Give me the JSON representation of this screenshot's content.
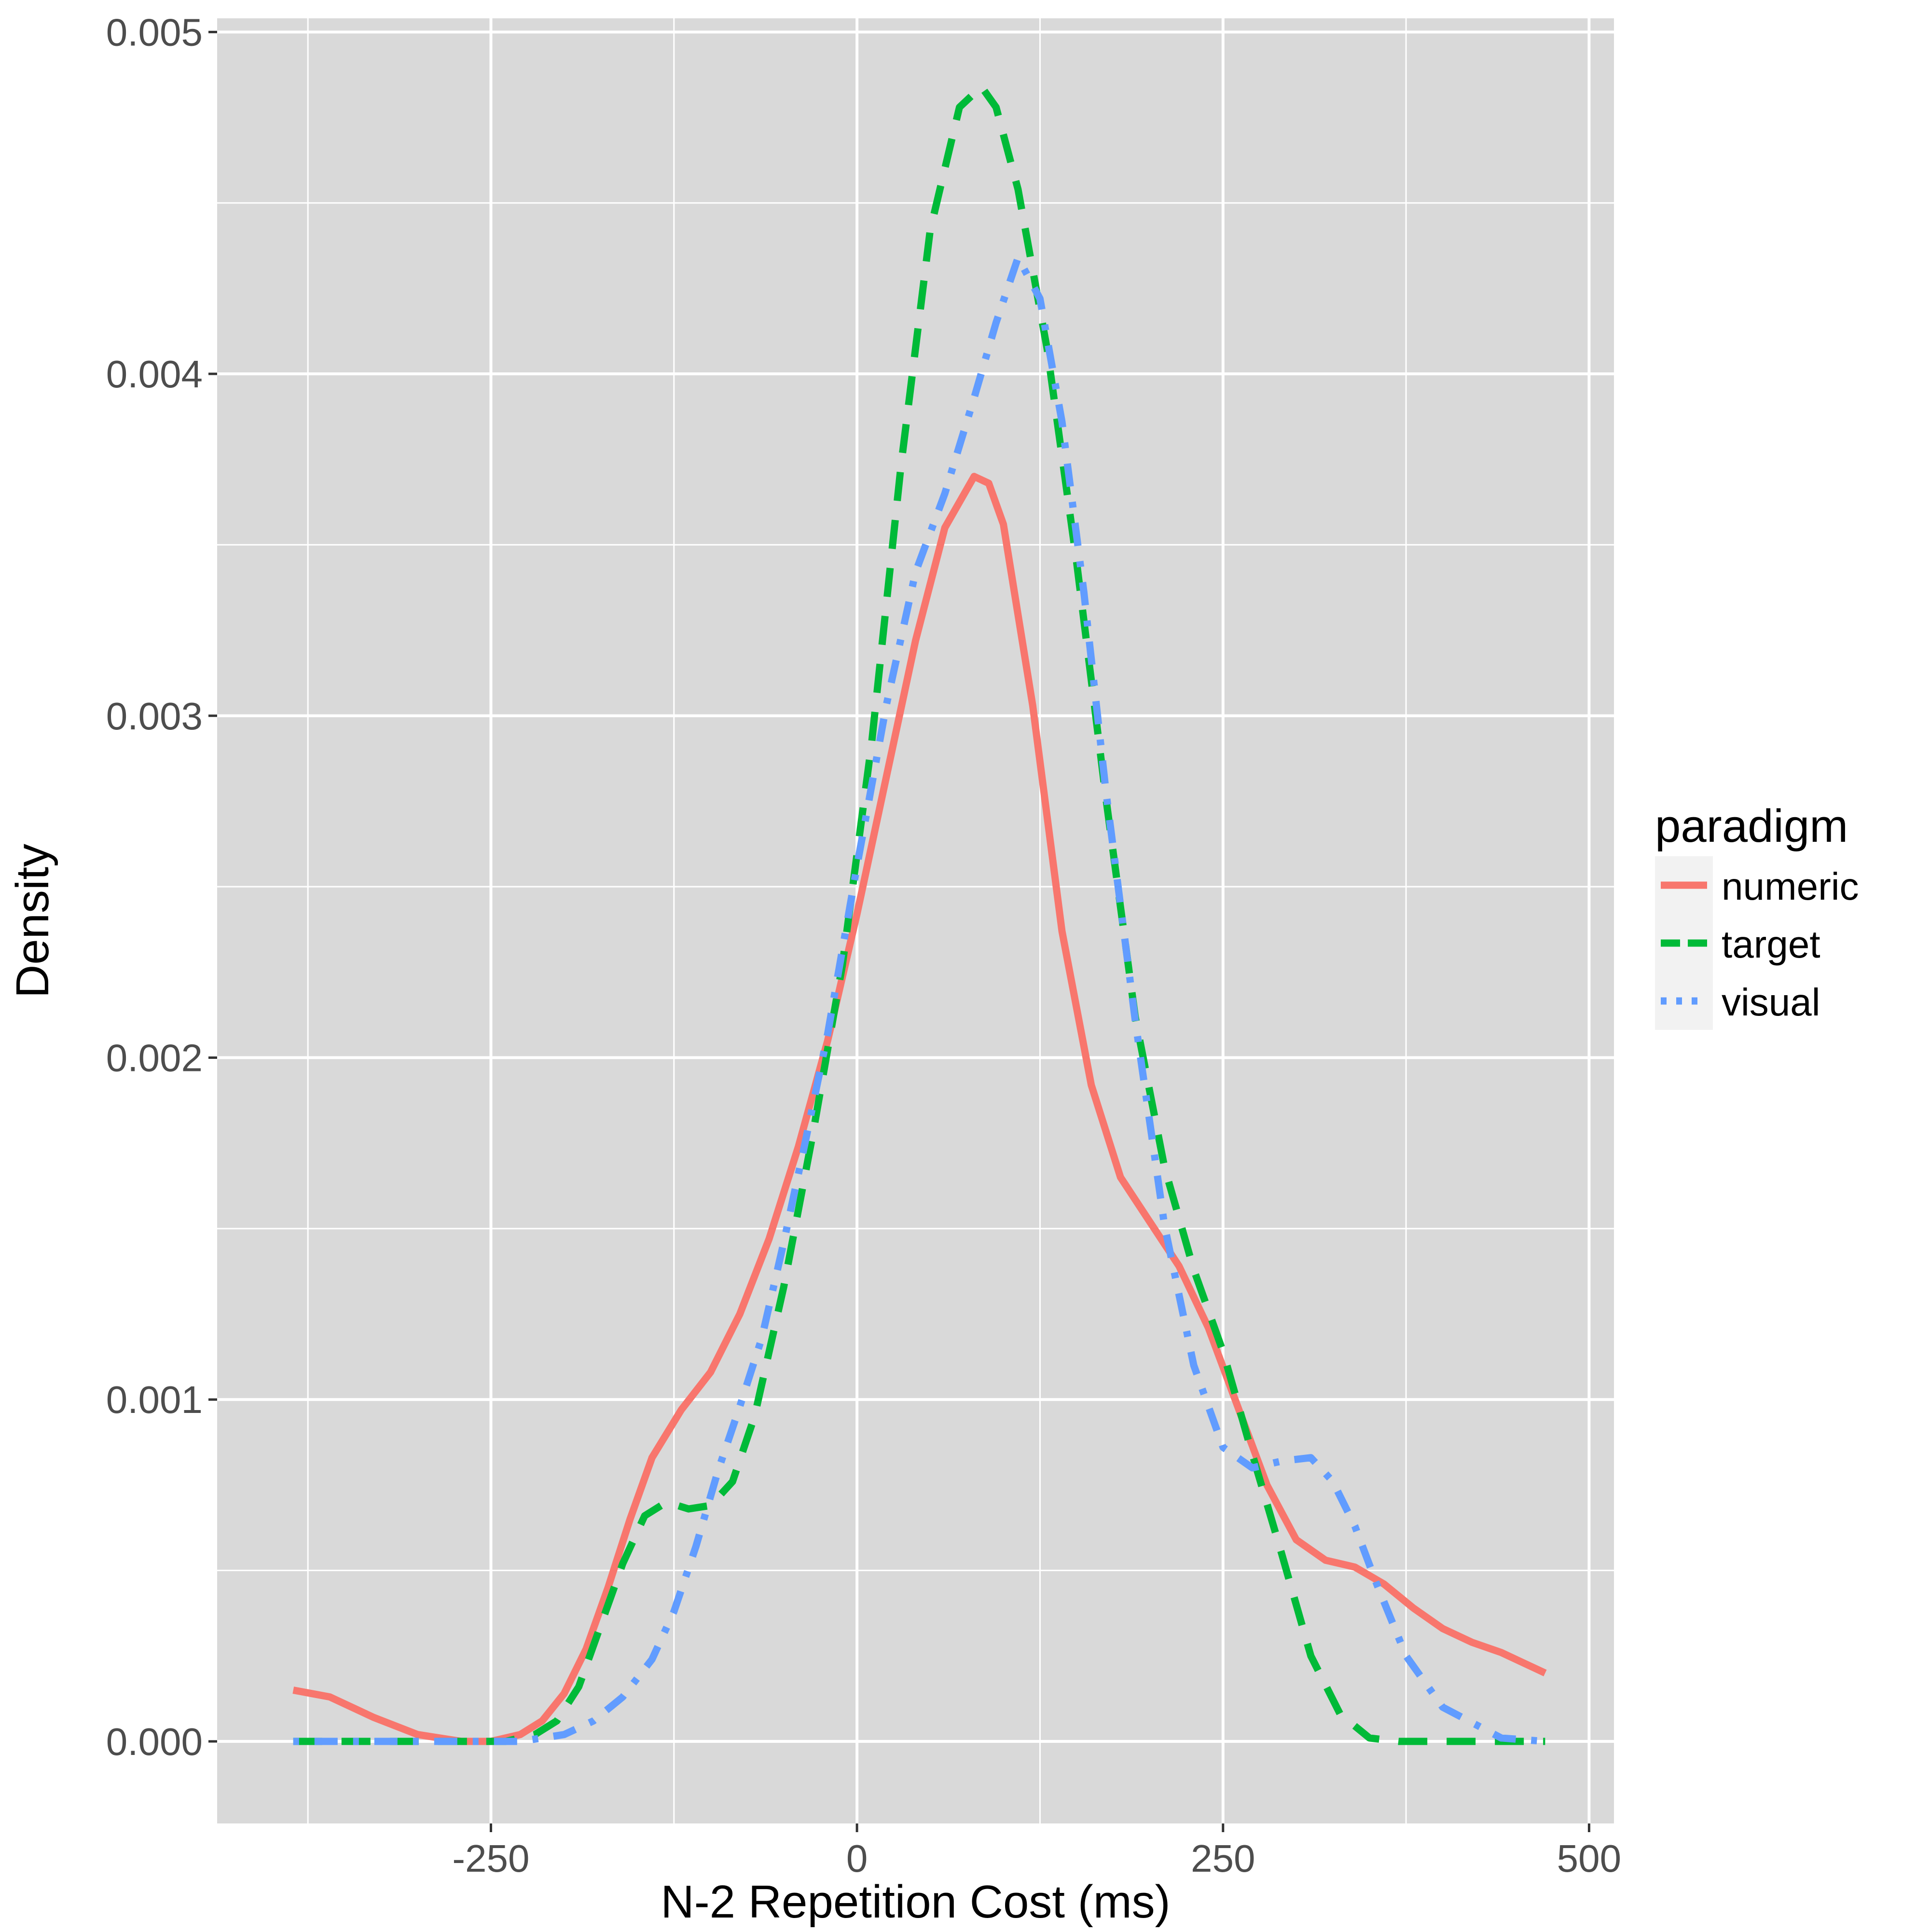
{
  "chart_data": {
    "type": "line",
    "title": "",
    "xlabel": "N-2 Repetition Cost (ms)",
    "ylabel": "Density",
    "xlim": [
      -437,
      517
    ],
    "ylim": [
      -0.00024,
      0.00504
    ],
    "x_ticks": [
      -250,
      0,
      250,
      500
    ],
    "x_tick_labels": [
      "-250",
      "0",
      "250",
      "500"
    ],
    "y_ticks": [
      0,
      0.001,
      0.002,
      0.003,
      0.004,
      0.005
    ],
    "y_tick_labels": [
      "0.000",
      "0.001",
      "0.002",
      "0.003",
      "0.004",
      "0.005"
    ],
    "grid": true,
    "panel_background": "#d9d9d9",
    "grid_color": "#ffffff",
    "legend": {
      "title": "paradigm",
      "position": "right",
      "entries": [
        "numeric",
        "target",
        "visual"
      ]
    },
    "series": [
      {
        "name": "numeric",
        "color": "#f8766d",
        "linetype": "solid",
        "x": [
          -385,
          -360,
          -330,
          -300,
          -270,
          -250,
          -230,
          -215,
          -200,
          -185,
          -170,
          -155,
          -140,
          -120,
          -100,
          -80,
          -60,
          -40,
          -20,
          0,
          20,
          40,
          60,
          80,
          90,
          100,
          120,
          140,
          160,
          180,
          200,
          220,
          240,
          260,
          280,
          300,
          320,
          340,
          360,
          380,
          400,
          420,
          440,
          470
        ],
        "y": [
          0.00015,
          0.00013,
          7e-05,
          2e-05,
          0.0,
          0.0,
          2e-05,
          6e-05,
          0.00014,
          0.00027,
          0.00045,
          0.00065,
          0.00083,
          0.00097,
          0.00108,
          0.00125,
          0.00147,
          0.00174,
          0.00205,
          0.00242,
          0.00282,
          0.00322,
          0.00355,
          0.0037,
          0.00368,
          0.00356,
          0.00303,
          0.00237,
          0.00192,
          0.00165,
          0.00152,
          0.00139,
          0.00121,
          0.00098,
          0.00075,
          0.00059,
          0.00053,
          0.00051,
          0.00046,
          0.00039,
          0.00033,
          0.00029,
          0.00026,
          0.0002
        ]
      },
      {
        "name": "target",
        "color": "#00ba38",
        "linetype": "dashed",
        "x": [
          -385,
          -300,
          -240,
          -220,
          -205,
          -190,
          -175,
          -160,
          -145,
          -130,
          -115,
          -100,
          -85,
          -70,
          -50,
          -30,
          -10,
          10,
          30,
          50,
          70,
          85,
          95,
          110,
          130,
          150,
          170,
          190,
          210,
          230,
          250,
          270,
          290,
          310,
          330,
          350,
          370,
          400,
          470
        ],
        "y": [
          0.0,
          0.0,
          0.0,
          2e-05,
          6e-05,
          0.00016,
          0.00034,
          0.00052,
          0.00066,
          0.0007,
          0.00068,
          0.00069,
          0.00076,
          0.00095,
          0.00133,
          0.00178,
          0.00227,
          0.00292,
          0.00373,
          0.00442,
          0.00478,
          0.00484,
          0.00478,
          0.00454,
          0.00407,
          0.00345,
          0.00276,
          0.00212,
          0.00168,
          0.00138,
          0.00114,
          0.00084,
          0.00055,
          0.00025,
          8e-05,
          1e-05,
          0.0,
          0.0,
          0.0
        ]
      },
      {
        "name": "visual",
        "color": "#619cff",
        "linetype": "dotdash",
        "x": [
          -385,
          -300,
          -230,
          -200,
          -180,
          -160,
          -140,
          -125,
          -110,
          -95,
          -80,
          -65,
          -50,
          -35,
          -20,
          0,
          20,
          40,
          60,
          80,
          95,
          110,
          125,
          140,
          155,
          170,
          190,
          210,
          230,
          250,
          270,
          290,
          310,
          325,
          340,
          355,
          375,
          400,
          440,
          470
        ],
        "y": [
          0.0,
          0.0,
          0.0,
          2e-05,
          6e-05,
          0.00013,
          0.00024,
          0.00038,
          0.00057,
          0.00079,
          0.00098,
          0.00118,
          0.00146,
          0.00176,
          0.00207,
          0.00256,
          0.00303,
          0.00342,
          0.00365,
          0.00393,
          0.00415,
          0.00434,
          0.00422,
          0.00386,
          0.00336,
          0.00278,
          0.00211,
          0.00151,
          0.0011,
          0.00086,
          0.0008,
          0.00082,
          0.00083,
          0.00076,
          0.00063,
          0.00046,
          0.00025,
          0.0001,
          1e-05,
          0.0
        ]
      }
    ]
  }
}
